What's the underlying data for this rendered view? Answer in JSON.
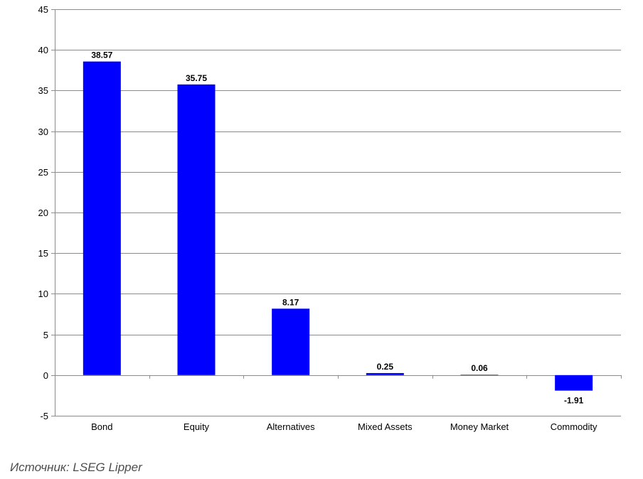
{
  "chart_data": {
    "type": "bar",
    "categories": [
      "Bond",
      "Equity",
      "Alternatives",
      "Mixed Assets",
      "Money Market",
      "Commodity"
    ],
    "values": [
      38.57,
      35.75,
      8.17,
      0.25,
      0.06,
      -1.91
    ],
    "value_labels": [
      "38.57",
      "35.75",
      "8.17",
      "0.25",
      "0.06",
      "-1.91"
    ],
    "ylim": [
      -5,
      45
    ],
    "yticks": [
      -5,
      0,
      5,
      10,
      15,
      20,
      25,
      30,
      35,
      40,
      45
    ],
    "grid": true,
    "legend": "none",
    "bar_color": "#0000ff"
  },
  "source_note": "Источник: LSEG Lipper"
}
